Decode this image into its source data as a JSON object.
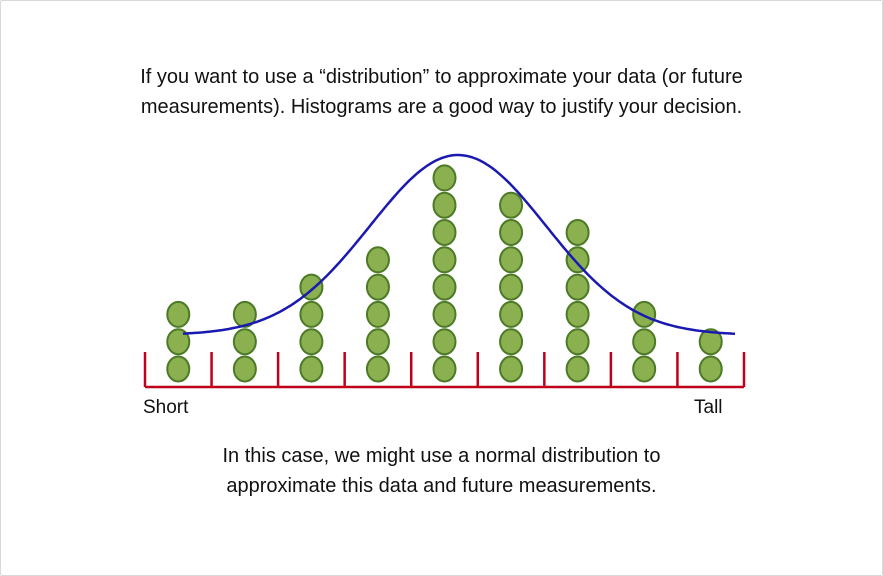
{
  "captions": {
    "top_line1": "If you want to use a “distribution” to approximate your data (or future",
    "top_line2": "measurements). Histograms are a good way to justify your decision.",
    "bottom_line1": "In this case, we might use a normal distribution to",
    "bottom_line2": "approximate this data and future measurements."
  },
  "axis": {
    "left_label": "Short",
    "right_label": "Tall"
  },
  "histogram": {
    "bin_counts": [
      3,
      3,
      4,
      5,
      8,
      7,
      6,
      3,
      2
    ],
    "bin_count_total": 9
  },
  "colors": {
    "dot_fill": "#8bb050",
    "dot_stroke": "#4c7a26",
    "curve": "#1a1ab0",
    "axis": "#c0001a",
    "text": "#111111"
  }
}
